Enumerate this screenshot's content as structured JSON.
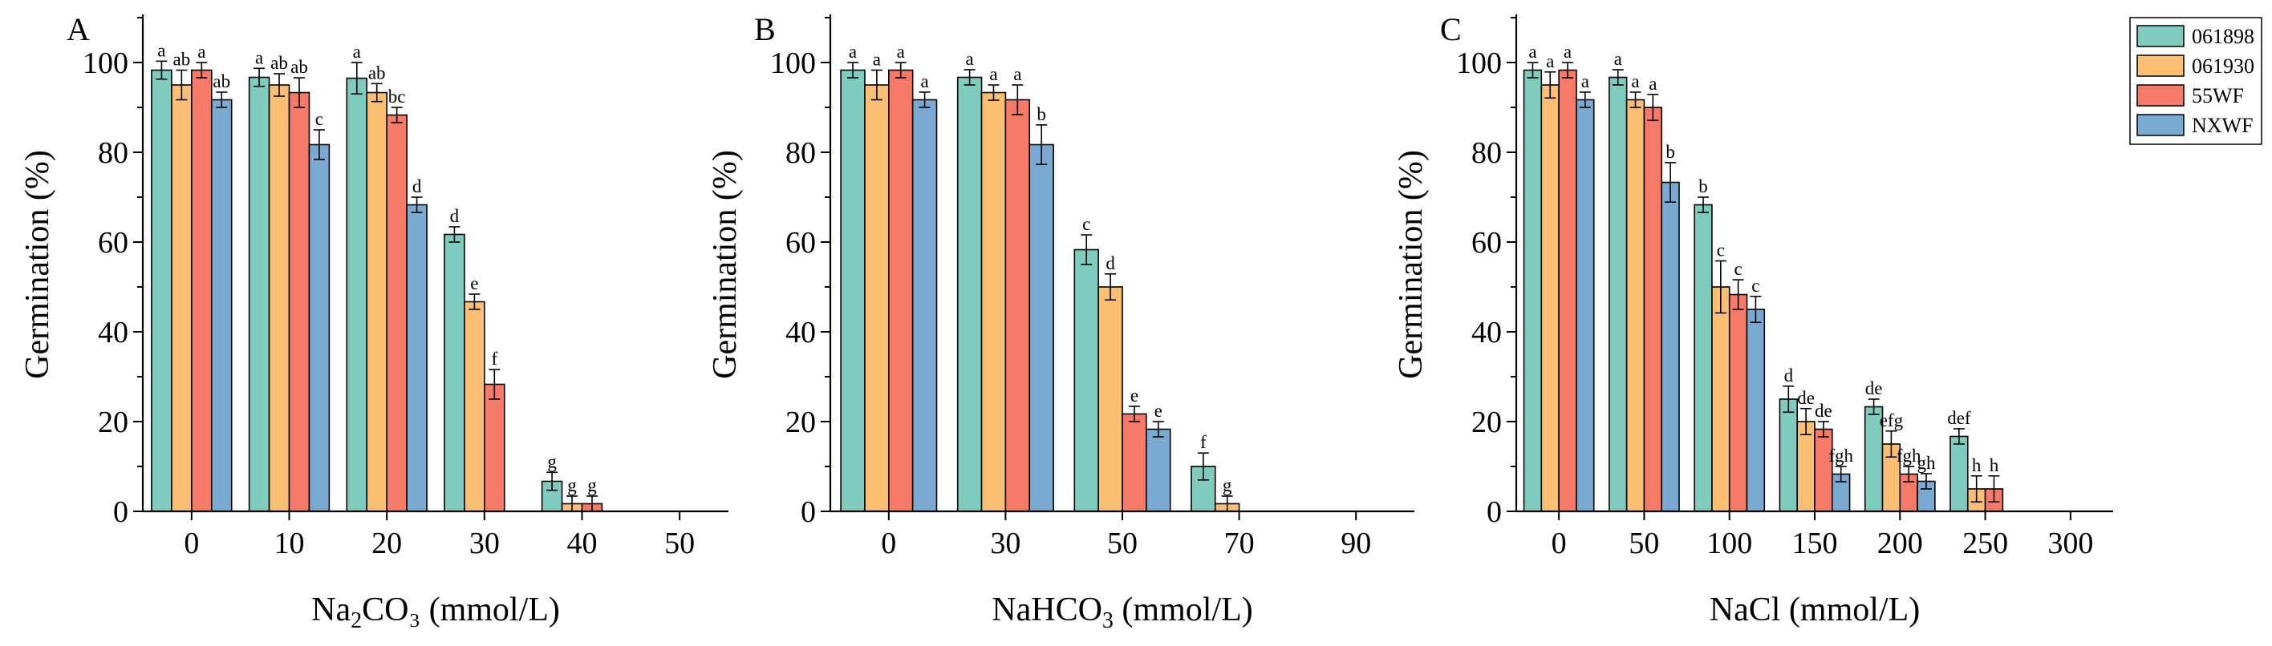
{
  "legend": {
    "entries": [
      {
        "name": "061898",
        "color": "#7fcbbd"
      },
      {
        "name": "061930",
        "color": "#fbbf74"
      },
      {
        "name": "55WF",
        "color": "#f57a68"
      },
      {
        "name": "NXWF",
        "color": "#7aaad1"
      }
    ]
  },
  "chart_data": [
    {
      "type": "bar",
      "panel": "A",
      "title": "",
      "xlabel": "Na₂CO₃ (mmol/L)",
      "ylabel": "Germination (%)",
      "ylim": [
        0,
        110
      ],
      "yticks": [
        0,
        20,
        40,
        60,
        80,
        100
      ],
      "categories": [
        "0",
        "10",
        "20",
        "30",
        "40",
        "50"
      ],
      "series": [
        {
          "name": "061898",
          "values": [
            98.3,
            96.7,
            96.5,
            61.7,
            6.7,
            null
          ],
          "errors": [
            2.0,
            2.0,
            3.5,
            1.7,
            2.0,
            null
          ],
          "labels": [
            "a",
            "a",
            "a",
            "d",
            "g",
            ""
          ]
        },
        {
          "name": "061930",
          "values": [
            95.0,
            95.0,
            93.3,
            46.7,
            1.7,
            null
          ],
          "errors": [
            3.3,
            2.5,
            2.0,
            1.7,
            1.7,
            null
          ],
          "labels": [
            "ab",
            "ab",
            "ab",
            "e",
            "g",
            ""
          ]
        },
        {
          "name": "55WF",
          "values": [
            98.3,
            93.3,
            88.3,
            28.3,
            1.7,
            null
          ],
          "errors": [
            1.7,
            3.3,
            1.7,
            3.3,
            1.7,
            null
          ],
          "labels": [
            "a",
            "ab",
            "bc",
            "f",
            "g",
            ""
          ]
        },
        {
          "name": "NXWF",
          "values": [
            91.7,
            81.7,
            68.3,
            null,
            null,
            null
          ],
          "errors": [
            1.7,
            3.3,
            1.7,
            null,
            null,
            null
          ],
          "labels": [
            "ab",
            "c",
            "d",
            "",
            "",
            ""
          ]
        }
      ]
    },
    {
      "type": "bar",
      "panel": "B",
      "title": "",
      "xlabel": "NaHCO₃ (mmol/L)",
      "ylabel": "Germination (%)",
      "ylim": [
        0,
        110
      ],
      "yticks": [
        0,
        20,
        40,
        60,
        80,
        100
      ],
      "categories": [
        "0",
        "30",
        "50",
        "70",
        "90"
      ],
      "series": [
        {
          "name": "061898",
          "values": [
            98.3,
            96.7,
            58.3,
            10.0,
            null
          ],
          "errors": [
            1.7,
            1.7,
            3.3,
            3.0,
            null
          ],
          "labels": [
            "a",
            "a",
            "c",
            "f",
            ""
          ]
        },
        {
          "name": "061930",
          "values": [
            95.0,
            93.3,
            50.0,
            1.7,
            null
          ],
          "errors": [
            3.3,
            1.7,
            2.9,
            1.7,
            null
          ],
          "labels": [
            "a",
            "a",
            "d",
            "g",
            ""
          ]
        },
        {
          "name": "55WF",
          "values": [
            98.3,
            91.7,
            21.7,
            null,
            null
          ],
          "errors": [
            1.7,
            3.3,
            1.7,
            null,
            null
          ],
          "labels": [
            "a",
            "a",
            "e",
            "",
            ""
          ]
        },
        {
          "name": "NXWF",
          "values": [
            91.7,
            81.7,
            18.3,
            null,
            null
          ],
          "errors": [
            1.7,
            4.4,
            1.7,
            null,
            null
          ],
          "labels": [
            "a",
            "b",
            "e",
            "",
            ""
          ]
        }
      ]
    },
    {
      "type": "bar",
      "panel": "C",
      "title": "",
      "xlabel": "NaCl (mmol/L)",
      "ylabel": "Germination (%)",
      "ylim": [
        0,
        110
      ],
      "yticks": [
        0,
        20,
        40,
        60,
        80,
        100
      ],
      "categories": [
        "0",
        "50",
        "100",
        "150",
        "200",
        "250",
        "300"
      ],
      "series": [
        {
          "name": "061898",
          "values": [
            98.3,
            96.7,
            68.3,
            25.0,
            23.3,
            16.7,
            null
          ],
          "errors": [
            1.7,
            1.7,
            1.7,
            2.9,
            1.7,
            1.7,
            null
          ],
          "labels": [
            "a",
            "a",
            "b",
            "d",
            "de",
            "def",
            ""
          ]
        },
        {
          "name": "061930",
          "values": [
            95.0,
            91.7,
            50.0,
            20.0,
            15.0,
            5.0,
            null
          ],
          "errors": [
            2.9,
            1.7,
            5.8,
            2.9,
            2.9,
            2.9,
            null
          ],
          "labels": [
            "a",
            "a",
            "c",
            "de",
            "efg",
            "h",
            ""
          ]
        },
        {
          "name": "55WF",
          "values": [
            98.3,
            90.0,
            48.3,
            18.3,
            8.3,
            5.0,
            null
          ],
          "errors": [
            1.7,
            2.9,
            3.3,
            1.7,
            1.7,
            2.9,
            null
          ],
          "labels": [
            "a",
            "a",
            "c",
            "de",
            "fgh",
            "h",
            ""
          ]
        },
        {
          "name": "NXWF",
          "values": [
            91.7,
            73.3,
            45.0,
            8.3,
            6.7,
            null,
            null
          ],
          "errors": [
            1.7,
            4.4,
            2.9,
            1.7,
            1.7,
            null,
            null
          ],
          "labels": [
            "a",
            "b",
            "c",
            "fgh",
            "gh",
            "",
            ""
          ]
        }
      ]
    }
  ]
}
